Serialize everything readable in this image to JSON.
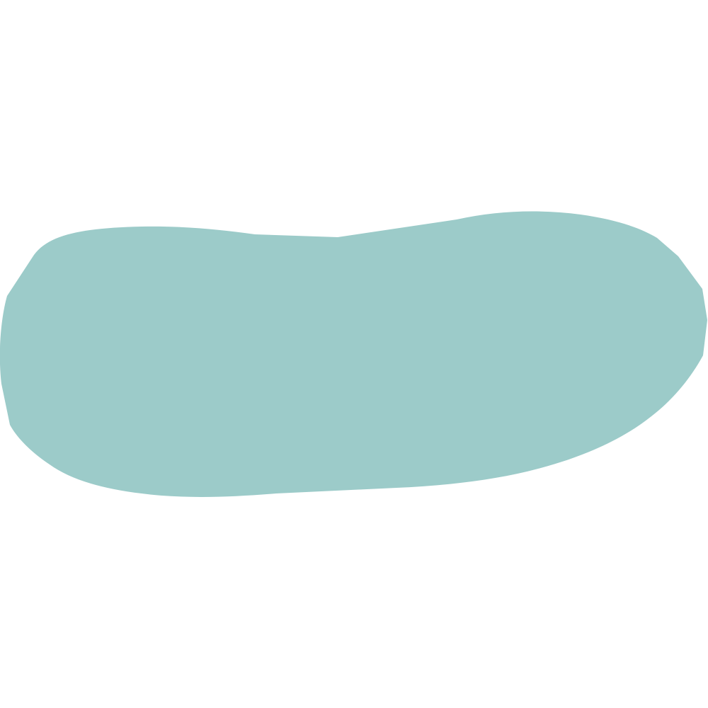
{
  "background_color": "#ffffff",
  "shape": {
    "kind": "organic-blob",
    "fill_color": "#9ccbc9"
  }
}
